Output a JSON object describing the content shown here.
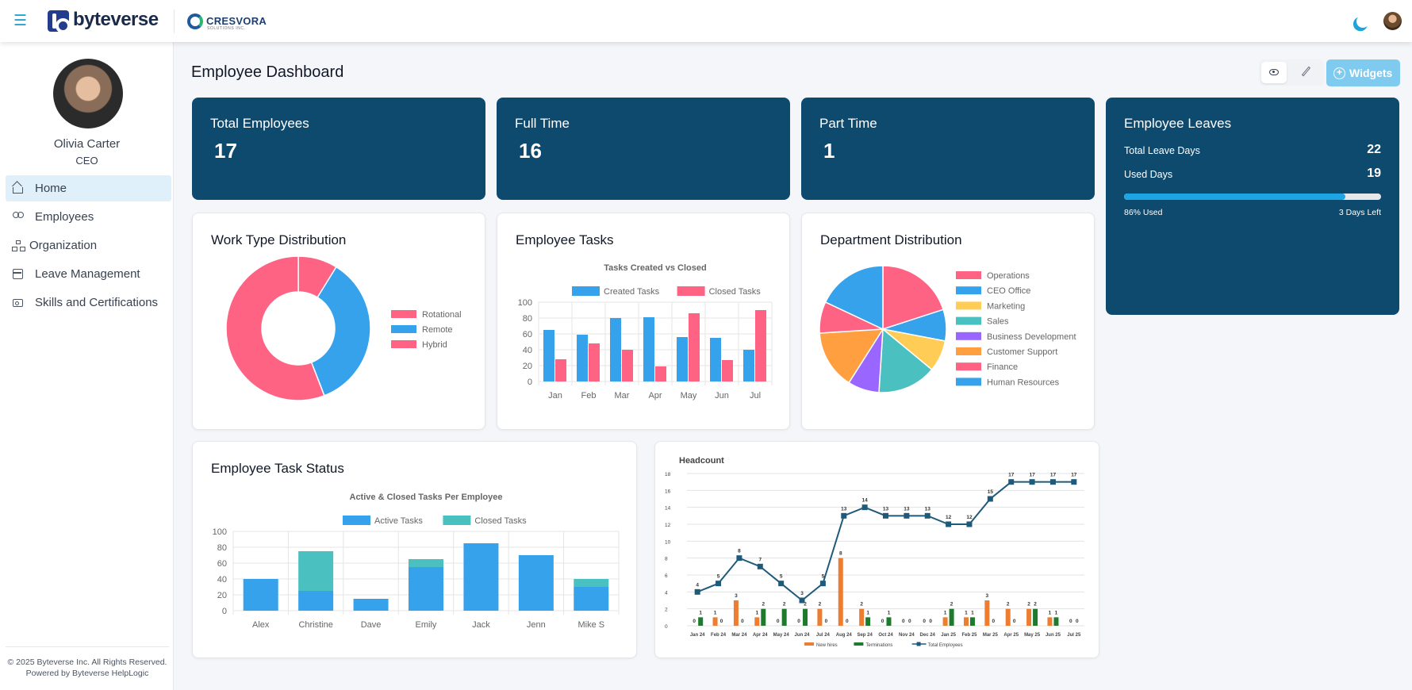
{
  "topbar": {
    "brand": "byteverse",
    "client_brand": "CRESVORA",
    "client_sub": "SOLUTIONS INC."
  },
  "user": {
    "name": "Olivia Carter",
    "role": "CEO"
  },
  "nav": [
    {
      "label": "Home",
      "icon": "home-icon",
      "active": true
    },
    {
      "label": "Employees",
      "icon": "users-icon",
      "active": false
    },
    {
      "label": "Organization",
      "icon": "org-chart-icon",
      "active": false
    },
    {
      "label": "Leave Management",
      "icon": "calendar-icon",
      "active": false
    },
    {
      "label": "Skills and Certifications",
      "icon": "id-card-icon",
      "active": false
    }
  ],
  "footer": {
    "copyright": "© 2025 Byteverse Inc. All Rights Reserved.",
    "powered": "Powered by Byteverse HelpLogic"
  },
  "page": {
    "title": "Employee Dashboard",
    "widgets_label": "Widgets"
  },
  "stats": {
    "total": {
      "label": "Total Employees",
      "value": "17"
    },
    "full_time": {
      "label": "Full Time",
      "value": "16"
    },
    "part_time": {
      "label": "Part Time",
      "value": "1"
    }
  },
  "leaves": {
    "title": "Employee Leaves",
    "total_label": "Total Leave Days",
    "total_value": "22",
    "used_label": "Used Days",
    "used_value": "19",
    "used_pct": 86,
    "used_text": "86% Used",
    "left_text": "3 Days Left"
  },
  "colors": {
    "primary": "#0d4a6e",
    "accent": "#1ea5d8",
    "blue": "#36a2eb",
    "pink": "#ff6384",
    "teal": "#4bc0c0",
    "orange": "#ed7d31",
    "green": "#1e7b2e"
  },
  "chart_data": [
    {
      "id": "work_type",
      "card_title": "Work Type Distribution",
      "type": "pie",
      "variant": "doughnut",
      "categories": [
        "Rotational",
        "Remote",
        "Hybrid"
      ],
      "values": [
        1.5,
        6,
        9.5
      ],
      "colors": [
        "#ff6384",
        "#36a2eb",
        "#ff6384"
      ]
    },
    {
      "id": "tasks",
      "card_title": "Employee Tasks",
      "type": "bar",
      "title": "Tasks Created vs Closed",
      "categories": [
        "Jan",
        "Feb",
        "Mar",
        "Apr",
        "May",
        "Jun",
        "Jul"
      ],
      "series": [
        {
          "name": "Created Tasks",
          "color": "#36a2eb",
          "values": [
            65,
            59,
            80,
            81,
            56,
            55,
            40
          ]
        },
        {
          "name": "Closed Tasks",
          "color": "#ff6384",
          "values": [
            28,
            48,
            40,
            19,
            86,
            27,
            90
          ]
        }
      ],
      "ylim": [
        0,
        100
      ],
      "yticks": [
        0,
        20,
        40,
        60,
        80,
        100
      ]
    },
    {
      "id": "departments",
      "card_title": "Department Distribution",
      "type": "pie",
      "categories": [
        "Operations",
        "CEO Office",
        "Marketing",
        "Sales",
        "Business Development",
        "Customer Support",
        "Finance",
        "Human Resources"
      ],
      "values": [
        20,
        8,
        8,
        15,
        8,
        15,
        8,
        18
      ],
      "colors": [
        "#ff6384",
        "#36a2eb",
        "#ffcd56",
        "#4bc0c0",
        "#9966ff",
        "#ff9f40",
        "#ff6384",
        "#36a2eb"
      ]
    },
    {
      "id": "task_status",
      "card_title": "Employee Task Status",
      "type": "bar",
      "variant": "stacked",
      "title": "Active & Closed Tasks Per Employee",
      "categories": [
        "Alex",
        "Christine",
        "Dave",
        "Emily",
        "Jack",
        "Jenn",
        "Mike S"
      ],
      "series": [
        {
          "name": "Active Tasks",
          "color": "#36a2eb",
          "values": [
            40,
            25,
            15,
            55,
            85,
            70,
            30
          ]
        },
        {
          "name": "Closed Tasks",
          "color": "#4bc0c0",
          "values": [
            0,
            50,
            0,
            10,
            0,
            0,
            10
          ]
        }
      ],
      "ylim": [
        0,
        100
      ],
      "yticks": [
        0,
        20,
        40,
        60,
        80,
        100
      ]
    },
    {
      "id": "headcount",
      "type": "bar",
      "variant": "bar+line",
      "title": "Headcount",
      "categories": [
        "Jan 24",
        "Feb 24",
        "Mar 24",
        "Apr 24",
        "May 24",
        "Jun 24",
        "Jul 24",
        "Aug 24",
        "Sep 24",
        "Oct 24",
        "Nov 24",
        "Dec 24",
        "Jan 25",
        "Feb 25",
        "Mar 25",
        "Apr 25",
        "May 25",
        "Jun 25",
        "Jul 25"
      ],
      "series": [
        {
          "name": "New hires",
          "color": "#ed7d31",
          "kind": "bar",
          "values": [
            0,
            1,
            3,
            1,
            0,
            0,
            2,
            8,
            2,
            0,
            0,
            0,
            1,
            1,
            3,
            2,
            2,
            1,
            0
          ]
        },
        {
          "name": "Terminations",
          "color": "#1e7b2e",
          "kind": "bar",
          "values": [
            1,
            0,
            0,
            2,
            2,
            2,
            0,
            0,
            1,
            1,
            0,
            0,
            2,
            1,
            0,
            0,
            2,
            1,
            0
          ]
        },
        {
          "name": "Total Employees",
          "color": "#1f5a7a",
          "kind": "line",
          "values": [
            4,
            5,
            8,
            7,
            5,
            3,
            5,
            13,
            14,
            13,
            13,
            13,
            12,
            12,
            15,
            17,
            17,
            17,
            17
          ]
        }
      ],
      "ylim": [
        0,
        18
      ],
      "yticks": [
        0,
        2,
        4,
        6,
        8,
        10,
        12,
        14,
        16,
        18
      ]
    }
  ]
}
